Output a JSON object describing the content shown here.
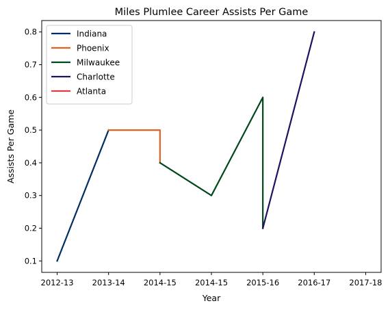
{
  "chart_data": {
    "type": "line",
    "title": "Miles Plumlee Career Assists Per Game",
    "xlabel": "Year",
    "ylabel": "Assists Per Game",
    "x_tick_labels": [
      "2012-13",
      "2013-14",
      "2014-15",
      "2014-15",
      "2015-16",
      "2016-17",
      "2017-18"
    ],
    "xlim": [
      -0.3,
      6.3
    ],
    "ylim": [
      0.065,
      0.835
    ],
    "y_ticks": [
      0.1,
      0.2,
      0.3,
      0.4,
      0.5,
      0.6,
      0.7,
      0.8
    ],
    "grid": false,
    "legend_position": "top-left",
    "series": [
      {
        "name": "Indiana",
        "color": "#002d62",
        "x": [
          0,
          1
        ],
        "y": [
          0.1,
          0.5
        ]
      },
      {
        "name": "Phoenix",
        "color": "#e56020",
        "x": [
          1,
          2,
          2
        ],
        "y": [
          0.5,
          0.5,
          0.4
        ]
      },
      {
        "name": "Milwaukee",
        "color": "#00471b",
        "x": [
          2,
          3,
          4,
          4
        ],
        "y": [
          0.4,
          0.3,
          0.6,
          0.2
        ]
      },
      {
        "name": "Charlotte",
        "color": "#1d1160",
        "x": [
          4,
          5
        ],
        "y": [
          0.2,
          0.8
        ]
      },
      {
        "name": "Atlanta",
        "color": "#e03a3e",
        "x": [],
        "y": []
      }
    ]
  }
}
